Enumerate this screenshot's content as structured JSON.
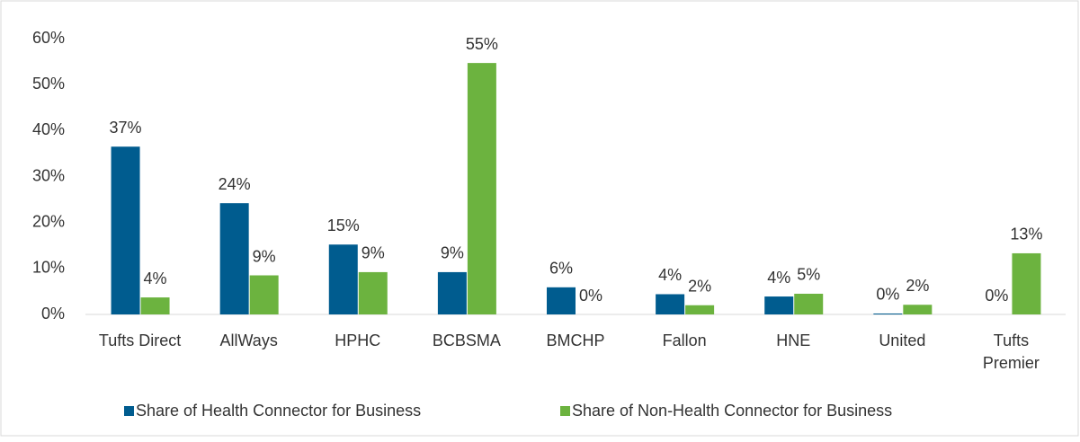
{
  "chart_data": {
    "type": "bar",
    "categories": [
      "Tufts Direct",
      "AllWays",
      "HPHC",
      "BCBSMA",
      "BMCHP",
      "Fallon",
      "HNE",
      "United",
      "Tufts\nPremier"
    ],
    "series": [
      {
        "name": "Share of Health Connector for Business",
        "color": "#005c8f",
        "values": [
          36.5,
          24.2,
          15.2,
          9.2,
          5.9,
          4.4,
          3.9,
          0.2,
          0
        ],
        "value_labels": [
          "37%",
          "24%",
          "15%",
          "9%",
          "6%",
          "4%",
          "4%",
          "0%",
          "0%"
        ]
      },
      {
        "name": "Share of Non-Health Connector for Business",
        "color": "#6cb33f",
        "values": [
          3.7,
          8.5,
          9.2,
          54.7,
          0,
          2.0,
          4.5,
          2.1,
          13.3
        ],
        "value_labels": [
          "4%",
          "9%",
          "9%",
          "55%",
          "0%",
          "2%",
          "5%",
          "2%",
          "13%"
        ]
      }
    ],
    "ylim": [
      0,
      60
    ],
    "yticks": [
      {
        "value": 0,
        "label": "0%"
      },
      {
        "value": 10,
        "label": "10%"
      },
      {
        "value": 20,
        "label": "20%"
      },
      {
        "value": 30,
        "label": "30%"
      },
      {
        "value": 40,
        "label": "40%"
      },
      {
        "value": 50,
        "label": "50%"
      },
      {
        "value": 60,
        "label": "60%"
      }
    ],
    "grid": false,
    "legend": "bottom"
  }
}
